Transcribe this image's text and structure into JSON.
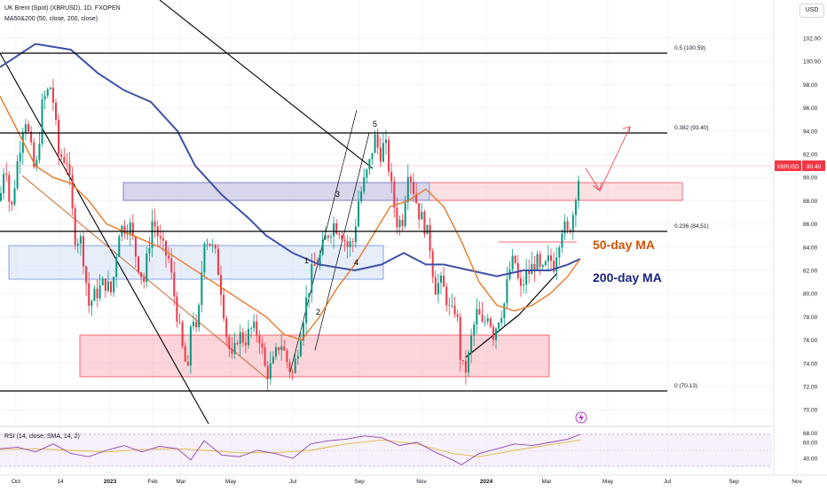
{
  "header": {
    "symbol_line": "UK Brent (Spot) (XBRUSD), 1D, FXOPEN",
    "ma_line": "MA50&200 (50, close, 200, close)",
    "rsi_line": "RSI (14, close, SMA, 14, 2)",
    "currency_button": "USD"
  },
  "colors": {
    "up": "#089981",
    "down": "#f23645",
    "ma50": "#e8782a",
    "ma200": "#3f51a8",
    "zone_red": "#f7b3b9",
    "zone_blue": "#b9cdf2",
    "fib_line": "#000000",
    "rsi": "#8e44ad",
    "rsi_signal": "#e0b83b",
    "price_tag": "#f23645",
    "annotation_orange": "#d35400",
    "annotation_blue": "#1a237e"
  },
  "chart_data": [
    {
      "type": "candlestick",
      "title": "UK Brent (Spot) (XBRUSD), 1D, FXOPEN",
      "ylim": [
        68,
        104
      ],
      "y_ticks": [
        "102.00",
        "100.00",
        "98.00",
        "96.00",
        "94.00",
        "92.00",
        "90.00",
        "88.00",
        "86.00",
        "84.00",
        "82.00",
        "80.00",
        "78.00",
        "76.00",
        "74.00",
        "72.00",
        "70.00",
        "68.00"
      ],
      "x_ticks": [
        "Oct",
        "14",
        "2023",
        "Feb",
        "Mar",
        "May",
        "Jul",
        "Sep",
        "Nov",
        "2024",
        "Mar",
        "May",
        "Jul",
        "Sep",
        "Nov"
      ],
      "price_path": [
        [
          0,
          88.0
        ],
        [
          6,
          92.0
        ],
        [
          12,
          86.5
        ],
        [
          18,
          90.5
        ],
        [
          28,
          95.5
        ],
        [
          40,
          90.0
        ],
        [
          48,
          96.5
        ],
        [
          58,
          98.0
        ],
        [
          66,
          92.0
        ],
        [
          76,
          91.5
        ],
        [
          84,
          85.0
        ],
        [
          92,
          84.5
        ],
        [
          100,
          79.0
        ],
        [
          108,
          80.0
        ],
        [
          118,
          81.0
        ],
        [
          126,
          80.0
        ],
        [
          134,
          85.5
        ],
        [
          146,
          86.0
        ],
        [
          154,
          83.0
        ],
        [
          162,
          81.0
        ],
        [
          172,
          86.5
        ],
        [
          182,
          84.0
        ],
        [
          190,
          83.0
        ],
        [
          198,
          79.0
        ],
        [
          206,
          75.0
        ],
        [
          212,
          73.0
        ],
        [
          216,
          79.0
        ],
        [
          222,
          76.0
        ],
        [
          230,
          85.0
        ],
        [
          236,
          84.5
        ],
        [
          244,
          83.0
        ],
        [
          250,
          80.0
        ],
        [
          256,
          76.0
        ],
        [
          262,
          74.0
        ],
        [
          268,
          76.5
        ],
        [
          276,
          76.0
        ],
        [
          284,
          77.0
        ],
        [
          292,
          76.5
        ],
        [
          300,
          73.0
        ],
        [
          308,
          74.0
        ],
        [
          316,
          76.0
        ],
        [
          324,
          74.0
        ],
        [
          330,
          73.0
        ],
        [
          336,
          75.5
        ],
        [
          344,
          79.0
        ],
        [
          352,
          82.0
        ],
        [
          360,
          83.0
        ],
        [
          368,
          85.0
        ],
        [
          376,
          86.0
        ],
        [
          384,
          85.5
        ],
        [
          392,
          84.0
        ],
        [
          398,
          84.5
        ],
        [
          404,
          88.0
        ],
        [
          410,
          89.5
        ],
        [
          416,
          91.0
        ],
        [
          422,
          93.5
        ],
        [
          428,
          92.0
        ],
        [
          434,
          93.0
        ],
        [
          438,
          91.0
        ],
        [
          442,
          88.5
        ],
        [
          448,
          86.0
        ],
        [
          454,
          86.5
        ],
        [
          460,
          91.0
        ],
        [
          466,
          89.0
        ],
        [
          472,
          87.0
        ],
        [
          478,
          86.0
        ],
        [
          484,
          84.5
        ],
        [
          490,
          80.5
        ],
        [
          496,
          81.0
        ],
        [
          502,
          80.0
        ],
        [
          508,
          78.0
        ],
        [
          514,
          79.0
        ],
        [
          520,
          73.5
        ],
        [
          526,
          73.5
        ],
        [
          532,
          76.5
        ],
        [
          538,
          78.5
        ],
        [
          544,
          77.0
        ],
        [
          550,
          78.5
        ],
        [
          556,
          76.5
        ],
        [
          562,
          78.0
        ],
        [
          568,
          79.0
        ],
        [
          574,
          82.0
        ],
        [
          580,
          83.0
        ],
        [
          586,
          80.0
        ],
        [
          592,
          81.5
        ],
        [
          598,
          82.0
        ],
        [
          604,
          83.0
        ],
        [
          610,
          81.5
        ],
        [
          616,
          82.5
        ],
        [
          620,
          83.0
        ],
        [
          624,
          82.5
        ],
        [
          628,
          84.0
        ],
        [
          634,
          86.0
        ],
        [
          640,
          85.0
        ],
        [
          646,
          87.0
        ],
        [
          650,
          89.5
        ],
        [
          654,
          90.4
        ]
      ],
      "ma50_path": [
        [
          0,
          97.0
        ],
        [
          20,
          94.0
        ],
        [
          40,
          91.0
        ],
        [
          60,
          90.0
        ],
        [
          80,
          89.5
        ],
        [
          100,
          88.0
        ],
        [
          120,
          86.0
        ],
        [
          150,
          85.0
        ],
        [
          180,
          84.0
        ],
        [
          210,
          82.5
        ],
        [
          240,
          81.0
        ],
        [
          270,
          79.5
        ],
        [
          300,
          78.0
        ],
        [
          320,
          76.5
        ],
        [
          340,
          76.0
        ],
        [
          360,
          78.0
        ],
        [
          380,
          80.5
        ],
        [
          400,
          82.5
        ],
        [
          420,
          85.0
        ],
        [
          440,
          87.5
        ],
        [
          460,
          88.0
        ],
        [
          480,
          89.0
        ],
        [
          500,
          87.5
        ],
        [
          520,
          84.5
        ],
        [
          540,
          81.0
        ],
        [
          560,
          79.0
        ],
        [
          580,
          78.5
        ],
        [
          600,
          79.0
        ],
        [
          620,
          80.0
        ],
        [
          640,
          81.5
        ],
        [
          654,
          83.0
        ]
      ],
      "ma200_path": [
        [
          0,
          99.5
        ],
        [
          40,
          101.5
        ],
        [
          80,
          101.0
        ],
        [
          110,
          99.0
        ],
        [
          140,
          97.5
        ],
        [
          170,
          96.5
        ],
        [
          200,
          94.0
        ],
        [
          220,
          91.0
        ],
        [
          250,
          88.5
        ],
        [
          280,
          86.5
        ],
        [
          300,
          85.0
        ],
        [
          330,
          83.5
        ],
        [
          360,
          82.5
        ],
        [
          400,
          82.0
        ],
        [
          430,
          82.5
        ],
        [
          455,
          83.5
        ],
        [
          480,
          82.5
        ],
        [
          500,
          82.5
        ],
        [
          530,
          82.0
        ],
        [
          560,
          81.5
        ],
        [
          590,
          82.0
        ],
        [
          620,
          82.0
        ],
        [
          640,
          82.5
        ],
        [
          654,
          83.0
        ]
      ],
      "current_price": "90.40",
      "current_price_label": "XBRUSD"
    },
    {
      "type": "line",
      "title": "RSI (14, close, SMA, 14, 2)",
      "ylim": [
        30,
        70
      ],
      "y_ticks": [
        "60.00",
        "40.00"
      ],
      "rsi_path": [
        [
          0,
          52
        ],
        [
          20,
          54
        ],
        [
          40,
          48
        ],
        [
          60,
          58
        ],
        [
          80,
          46
        ],
        [
          100,
          42
        ],
        [
          120,
          50
        ],
        [
          140,
          56
        ],
        [
          160,
          48
        ],
        [
          180,
          55
        ],
        [
          200,
          52
        ],
        [
          215,
          38
        ],
        [
          230,
          62
        ],
        [
          250,
          44
        ],
        [
          270,
          42
        ],
        [
          290,
          50
        ],
        [
          310,
          46
        ],
        [
          330,
          40
        ],
        [
          350,
          58
        ],
        [
          370,
          62
        ],
        [
          390,
          64
        ],
        [
          410,
          68
        ],
        [
          430,
          66
        ],
        [
          450,
          56
        ],
        [
          470,
          60
        ],
        [
          490,
          48
        ],
        [
          510,
          38
        ],
        [
          520,
          32
        ],
        [
          540,
          46
        ],
        [
          560,
          52
        ],
        [
          580,
          58
        ],
        [
          600,
          56
        ],
        [
          620,
          60
        ],
        [
          640,
          64
        ],
        [
          654,
          70
        ]
      ],
      "signal_path": [
        [
          0,
          51
        ],
        [
          40,
          52
        ],
        [
          80,
          50
        ],
        [
          120,
          48
        ],
        [
          160,
          51
        ],
        [
          200,
          52
        ],
        [
          230,
          50
        ],
        [
          270,
          47
        ],
        [
          310,
          47
        ],
        [
          350,
          50
        ],
        [
          390,
          58
        ],
        [
          430,
          63
        ],
        [
          470,
          58
        ],
        [
          510,
          46
        ],
        [
          540,
          42
        ],
        [
          580,
          50
        ],
        [
          620,
          57
        ],
        [
          654,
          63
        ]
      ]
    }
  ],
  "annotations": {
    "fib_0_5": "0.5 (100.59)",
    "fib_0_382": "0.382 (93.40)",
    "fib_0_236": "0.236 (84.51)",
    "fib_0": "0 (70.13)",
    "ma50_label": "50-day MA",
    "ma200_label": "200-day MA",
    "wave_1": "1",
    "wave_2": "2",
    "wave_3": "3",
    "wave_4": "4",
    "wave_5": "5"
  }
}
